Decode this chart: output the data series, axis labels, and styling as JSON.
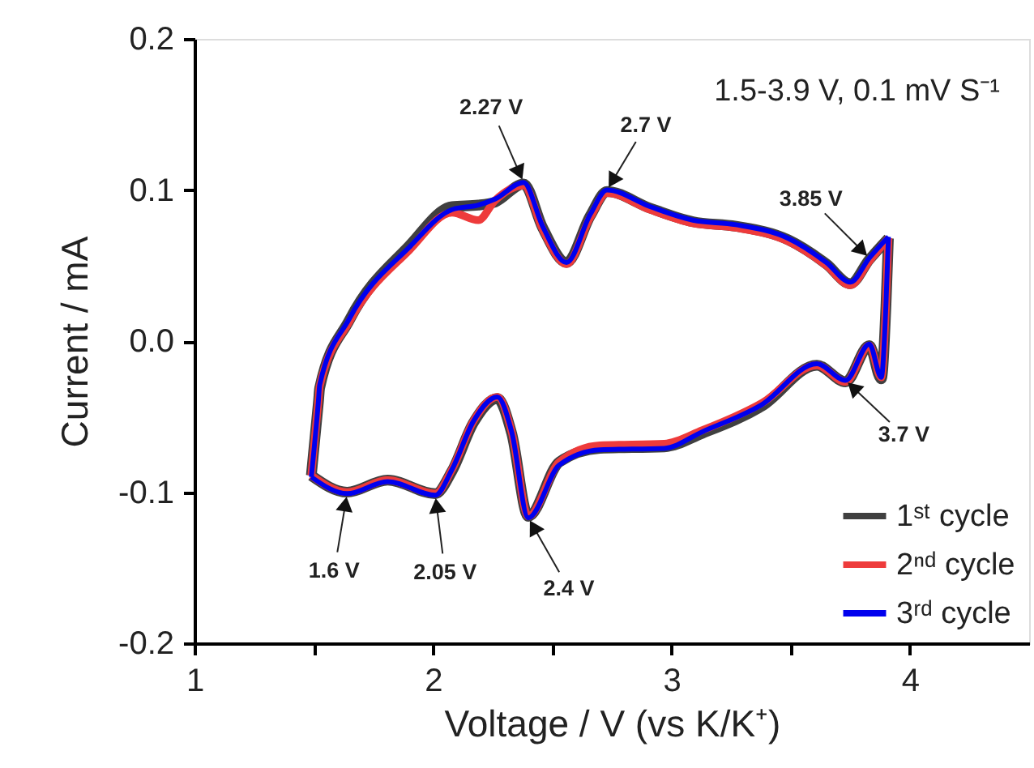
{
  "chart_data": {
    "type": "line",
    "xlabel": "Voltage / V (vs K/K⁺)",
    "ylabel": "Current / mA",
    "xlim": [
      1,
      4.5
    ],
    "ylim": [
      -0.2,
      0.2
    ],
    "xticks": [
      1,
      {
        "value": 1.5,
        "label": null
      },
      2,
      {
        "value": 2.5,
        "label": null
      },
      3,
      {
        "value": 3.5,
        "label": null
      },
      4
    ],
    "yticks": [
      {
        "value": -0.2,
        "label": "-0.2"
      },
      {
        "value": -0.1,
        "label": "-0.1"
      },
      {
        "value": 0,
        "label": "0.0"
      },
      {
        "value": 0.1,
        "label": "0.1"
      },
      {
        "value": 0.2,
        "label": "0.2"
      }
    ],
    "grid": false,
    "legend": "bottom right",
    "marker": "none",
    "line_style": "solid",
    "series": [
      {
        "name": "1ˢᵗ cycle",
        "color": "#404040",
        "x": [
          1.49,
          1.52,
          1.525,
          1.65,
          1.9,
          2.08,
          2.19,
          2.26,
          2.38,
          2.46,
          2.56,
          2.66,
          2.73,
          2.91,
          3.09,
          3.27,
          3.49,
          3.65,
          3.75,
          3.83,
          3.91
        ],
        "values": [
          -0.089,
          -0.04,
          -0.031,
          0.014,
          0.063,
          0.089,
          0.09,
          0.092,
          0.104,
          0.075,
          0.052,
          0.083,
          0.099,
          0.088,
          0.079,
          0.076,
          0.067,
          0.051,
          0.038,
          0.054,
          0.068
        ]
      },
      {
        "color": "#404040",
        "x": [
          1.49,
          1.64,
          1.81,
          2.01,
          2.08,
          2.17,
          2.27,
          2.33,
          2.4,
          2.53,
          2.7,
          2.97,
          3.13,
          3.38,
          3.61,
          3.73,
          3.83,
          3.88,
          3.9,
          3.91
        ],
        "values": [
          -0.089,
          -0.1,
          -0.092,
          -0.101,
          -0.086,
          -0.054,
          -0.038,
          -0.061,
          -0.116,
          -0.08,
          -0.071,
          -0.07,
          -0.061,
          -0.043,
          -0.016,
          -0.027,
          -0.003,
          -0.025,
          0.025,
          0.068
        ]
      },
      {
        "name": "2ⁿᵈ cycle",
        "color": "#ee3b3b",
        "x": [
          1.49,
          1.52,
          1.525,
          1.65,
          1.9,
          2.08,
          2.19,
          2.26,
          2.38,
          2.46,
          2.56,
          2.66,
          2.73,
          2.91,
          3.09,
          3.27,
          3.49,
          3.65,
          3.75,
          3.83,
          3.91
        ],
        "values": [
          -0.089,
          -0.039,
          -0.03,
          0.013,
          0.06,
          0.085,
          0.08,
          0.093,
          0.103,
          0.074,
          0.051,
          0.082,
          0.098,
          0.087,
          0.078,
          0.075,
          0.066,
          0.05,
          0.037,
          0.053,
          0.068
        ]
      },
      {
        "color": "#ee3b3b",
        "x": [
          1.49,
          1.64,
          1.81,
          2.01,
          2.08,
          2.17,
          2.27,
          2.33,
          2.4,
          2.53,
          2.7,
          2.97,
          3.13,
          3.38,
          3.61,
          3.73,
          3.83,
          3.88,
          3.9,
          3.91
        ],
        "values": [
          -0.089,
          -0.1,
          -0.092,
          -0.101,
          -0.085,
          -0.053,
          -0.037,
          -0.06,
          -0.116,
          -0.08,
          -0.069,
          -0.068,
          -0.059,
          -0.041,
          -0.016,
          -0.027,
          -0.003,
          -0.024,
          0.026,
          0.068
        ]
      },
      {
        "name": "3ʳᵈ cycle",
        "color": "#0000ee",
        "x": [
          1.49,
          1.52,
          1.525,
          1.65,
          1.9,
          2.08,
          2.19,
          2.26,
          2.38,
          2.46,
          2.56,
          2.66,
          2.73,
          2.91,
          3.09,
          3.27,
          3.49,
          3.65,
          3.75,
          3.83,
          3.91
        ],
        "values": [
          -0.09,
          -0.039,
          -0.029,
          0.015,
          0.062,
          0.087,
          0.09,
          0.094,
          0.105,
          0.076,
          0.052,
          0.084,
          0.1,
          0.089,
          0.08,
          0.077,
          0.068,
          0.052,
          0.039,
          0.055,
          0.069
        ]
      },
      {
        "color": "#0000ee",
        "x": [
          1.49,
          1.64,
          1.81,
          2.01,
          2.08,
          2.17,
          2.27,
          2.33,
          2.4,
          2.53,
          2.7,
          2.97,
          3.13,
          3.38,
          3.61,
          3.73,
          3.83,
          3.88,
          3.9,
          3.91
        ],
        "values": [
          -0.09,
          -0.101,
          -0.093,
          -0.102,
          -0.085,
          -0.053,
          -0.037,
          -0.06,
          -0.117,
          -0.082,
          -0.072,
          -0.071,
          -0.06,
          -0.042,
          -0.015,
          -0.026,
          -0.002,
          -0.024,
          0.026,
          0.069
        ]
      }
    ],
    "annotations": [
      {
        "text": "2.27 V",
        "x": 2.38,
        "y": 0.105
      },
      {
        "text": "2.7 V",
        "x": 2.73,
        "y": 0.1
      },
      {
        "text": "3.85 V",
        "x": 3.83,
        "y": 0.055
      },
      {
        "text": "3.7 V",
        "x": 3.73,
        "y": -0.026
      },
      {
        "text": "1.6 V",
        "x": 1.64,
        "y": -0.101
      },
      {
        "text": "2.05 V",
        "x": 2.01,
        "y": -0.102
      },
      {
        "text": "2.4 V",
        "x": 2.4,
        "y": -0.117
      },
      "1.5-3.9 V, 0.1 mV S⁻¹"
    ]
  }
}
